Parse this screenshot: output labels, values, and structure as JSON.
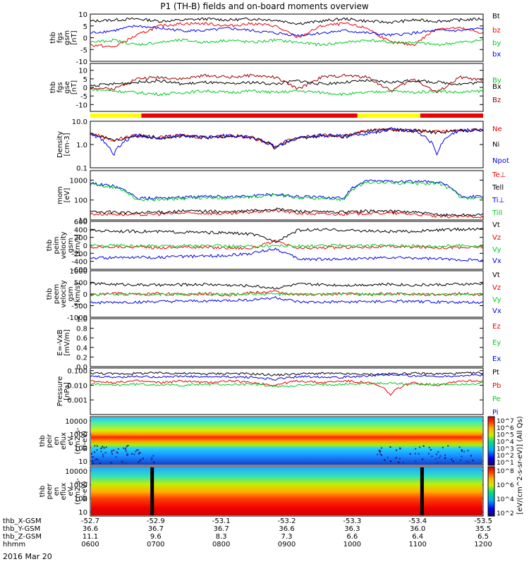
{
  "title": "P1 (TH-B) fields and on-board moments overview",
  "date_label": "2016 Mar 20",
  "colors": {
    "black": "#000000",
    "red": "#ee0000",
    "green": "#00cc22",
    "blue": "#0000ee",
    "darkred": "#990000",
    "yellow": "#ffff00",
    "barred": "#ee0000"
  },
  "chart_data": [
    {
      "type": "line",
      "panel": "fgs_gsm",
      "ylabel": [
        "thb",
        "fgs",
        "gsm",
        "[nT]"
      ],
      "ylim": [
        -10,
        10
      ],
      "yticks": [
        "10",
        "5",
        "0",
        "-5",
        "-10"
      ],
      "series": [
        {
          "name": "Bt",
          "color": "black",
          "values": [
            7,
            7.5,
            8,
            7,
            7.5,
            8,
            7.5,
            8,
            7.5,
            6,
            7,
            8,
            7,
            6.5,
            7.5,
            7,
            7.5,
            8
          ]
        },
        {
          "name": "bz",
          "color": "red",
          "values": [
            -3,
            -4,
            1,
            5,
            6,
            6,
            5,
            6,
            5,
            0,
            5,
            6,
            4,
            -2,
            -3,
            4,
            4,
            2
          ]
        },
        {
          "name": "by",
          "color": "green",
          "values": [
            -2,
            -1,
            -3,
            -2,
            -1,
            -2,
            -1,
            -2,
            -1,
            -2,
            -3,
            -2,
            -1,
            -2,
            -2,
            -3,
            -2,
            -1
          ]
        },
        {
          "name": "bx",
          "color": "blue",
          "values": [
            2,
            3,
            5,
            4,
            3,
            3,
            4,
            3,
            2,
            1,
            2,
            3,
            2,
            1,
            2,
            3,
            3,
            4
          ]
        }
      ]
    },
    {
      "type": "line",
      "panel": "fgs_gse",
      "ylabel": [
        "thb",
        "fgs",
        "gse",
        "[nT]"
      ],
      "ylim": [
        -14,
        14
      ],
      "yticks": [
        "10",
        "5",
        "0",
        "-5",
        "-10"
      ],
      "series": [
        {
          "name": "By",
          "color": "green",
          "values": [
            -1,
            -2,
            -3,
            -4,
            -3,
            -2,
            -3,
            -2,
            -3,
            -2,
            -3,
            -4,
            -3,
            -2,
            -3,
            -2,
            -3,
            -2
          ]
        },
        {
          "name": "Bx",
          "color": "black",
          "values": [
            1,
            2,
            3,
            4,
            2,
            3,
            2,
            3,
            2,
            4,
            2,
            3,
            4,
            3,
            4,
            3,
            2,
            3
          ]
        },
        {
          "name": "Bz",
          "color": "darkred",
          "values": [
            0,
            -1,
            5,
            6,
            5,
            7,
            6,
            7,
            6,
            -1,
            6,
            7,
            6,
            -2,
            5,
            -3,
            6,
            4
          ]
        }
      ]
    },
    {
      "type": "line",
      "panel": "density",
      "ylabel": [
        "Density",
        "[cm-3]"
      ],
      "ylim": [
        0.1,
        10
      ],
      "log": true,
      "yticks": [
        "10.0",
        "1.0",
        "0.1"
      ],
      "series": [
        {
          "name": "Ne",
          "color": "red",
          "values": [
            3,
            1.5,
            2.5,
            2,
            2.5,
            2,
            2.5,
            2,
            0.8,
            2,
            2.5,
            2.2,
            4,
            4.5,
            4,
            3.5,
            4,
            4.5
          ]
        },
        {
          "name": "Ni",
          "color": "black",
          "values": [
            3,
            1.4,
            2.4,
            2,
            2.3,
            2,
            2.4,
            2,
            0.7,
            1.9,
            2.4,
            2.1,
            4,
            4.4,
            3.9,
            3.4,
            3.9,
            4.4
          ]
        },
        {
          "name": "Npot",
          "color": "blue",
          "values": [
            3,
            0.3,
            2.5,
            2,
            2.5,
            2,
            2.5,
            2,
            0.8,
            2,
            2.5,
            2.4,
            3,
            4.5,
            4,
            0.3,
            4,
            4.5
          ]
        }
      ]
    },
    {
      "type": "line",
      "panel": "temperature",
      "ylabel": [
        "mom",
        "[eV]"
      ],
      "ylim": [
        10,
        3000
      ],
      "log": true,
      "yticks": [
        "1000",
        "100",
        "10"
      ],
      "series": [
        {
          "name": "Te⊥",
          "color": "red",
          "values": [
            20,
            20,
            18,
            20,
            22,
            22,
            20,
            25,
            30,
            22,
            20,
            20,
            22,
            22,
            20,
            15,
            15,
            15
          ]
        },
        {
          "name": "Tell",
          "color": "black",
          "values": [
            25,
            25,
            22,
            25,
            28,
            28,
            25,
            30,
            35,
            28,
            25,
            25,
            28,
            28,
            25,
            18,
            18,
            18
          ]
        },
        {
          "name": "Ti⊥",
          "color": "blue",
          "values": [
            700,
            500,
            120,
            130,
            140,
            150,
            150,
            160,
            200,
            150,
            140,
            130,
            900,
            900,
            850,
            800,
            150,
            150
          ]
        },
        {
          "name": "Till",
          "color": "green",
          "values": [
            600,
            450,
            100,
            110,
            120,
            130,
            130,
            140,
            180,
            130,
            120,
            110,
            750,
            750,
            700,
            700,
            120,
            120
          ]
        }
      ]
    },
    {
      "type": "line",
      "panel": "peim_velocity",
      "ylabel": [
        "thb",
        "peim",
        "velocity",
        "gsm",
        "[km/s]"
      ],
      "ylim": [
        -600,
        600
      ],
      "yticks": [
        "600",
        "400",
        "200",
        "0",
        "-200",
        "-400",
        "-600"
      ],
      "series": [
        {
          "name": "Vt",
          "color": "black",
          "values": [
            370,
            360,
            350,
            340,
            330,
            320,
            310,
            280,
            100,
            380,
            390,
            380,
            360,
            340,
            350,
            380,
            400,
            410
          ]
        },
        {
          "name": "Vz",
          "color": "red",
          "values": [
            -50,
            -30,
            -40,
            -60,
            -40,
            -50,
            -60,
            -70,
            100,
            -80,
            -60,
            -50,
            -40,
            -30,
            -40,
            -50,
            -60,
            -40
          ]
        },
        {
          "name": "Vy",
          "color": "green",
          "values": [
            -10,
            0,
            -20,
            -10,
            0,
            -10,
            -20,
            -30,
            0,
            -20,
            -10,
            0,
            -10,
            0,
            -10,
            -20,
            0,
            -10
          ]
        },
        {
          "name": "Vx",
          "color": "blue",
          "values": [
            -320,
            -310,
            -300,
            -300,
            -280,
            -270,
            -250,
            -200,
            -80,
            -340,
            -350,
            -340,
            -330,
            -310,
            -320,
            -340,
            -360,
            -370
          ]
        }
      ]
    },
    {
      "type": "line",
      "panel": "peem_velocity",
      "ylabel": [
        "thb",
        "peem",
        "velocity",
        "gsm",
        "[km/s]"
      ],
      "ylim": [
        -1000,
        1000
      ],
      "yticks": [
        "1000",
        "500",
        "0",
        "-500",
        "-1000"
      ],
      "series": [
        {
          "name": "Vt",
          "color": "black",
          "values": [
            450,
            420,
            400,
            380,
            400,
            420,
            380,
            350,
            250,
            420,
            400,
            380,
            400,
            420,
            380,
            400,
            420,
            430
          ]
        },
        {
          "name": "Vz",
          "color": "red",
          "values": [
            -50,
            30,
            -20,
            40,
            -30,
            20,
            -50,
            60,
            100,
            -40,
            -20,
            20,
            -30,
            30,
            -20,
            -40,
            20,
            -30
          ]
        },
        {
          "name": "Vy",
          "color": "green",
          "values": [
            -20,
            0,
            -10,
            -20,
            0,
            -10,
            -20,
            10,
            0,
            -20,
            -10,
            0,
            -20,
            0,
            -10,
            -20,
            0,
            -10
          ]
        },
        {
          "name": "Vx",
          "color": "blue",
          "values": [
            -380,
            -360,
            -350,
            -330,
            -320,
            -300,
            -280,
            -250,
            -150,
            -350,
            -360,
            -340,
            -330,
            -320,
            -330,
            -340,
            -360,
            -370
          ]
        }
      ]
    },
    {
      "type": "line",
      "panel": "efield",
      "ylabel": [
        "E=-VxB",
        "[mV/m]"
      ],
      "ylim": [
        0,
        1
      ],
      "yticks": [
        "1.0",
        "0.8",
        "0.6",
        "0.4",
        "0.2",
        "0.0"
      ],
      "series": [
        {
          "name": "Ez",
          "color": "red",
          "values": []
        },
        {
          "name": "Ey",
          "color": "green",
          "values": []
        },
        {
          "name": "Ex",
          "color": "blue",
          "values": []
        }
      ]
    },
    {
      "type": "line",
      "panel": "pressure",
      "ylabel": [
        "Pressure",
        "[nPa]"
      ],
      "ylim": [
        0.0001,
        0.15
      ],
      "log": true,
      "yticks": [
        "0.100",
        "0.010",
        "0.001"
      ],
      "series": [
        {
          "name": "Pt",
          "color": "black",
          "values": [
            0.07,
            0.06,
            0.065,
            0.07,
            0.065,
            0.06,
            0.065,
            0.06,
            0.05,
            0.06,
            0.065,
            0.06,
            0.055,
            0.06,
            0.065,
            0.06,
            0.065,
            0.07
          ]
        },
        {
          "name": "Pb",
          "color": "red",
          "values": [
            0.02,
            0.015,
            0.02,
            0.015,
            0.02,
            0.015,
            0.02,
            0.015,
            0.01,
            0.02,
            0.015,
            0.02,
            0.015,
            0.002,
            0.015,
            0.01,
            0.02,
            0.02
          ]
        },
        {
          "name": "Pe",
          "color": "green",
          "values": [
            0.012,
            0.01,
            0.012,
            0.011,
            0.01,
            0.012,
            0.011,
            0.012,
            0.008,
            0.01,
            0.011,
            0.012,
            0.013,
            0.014,
            0.012,
            0.011,
            0.012,
            0.013
          ]
        },
        {
          "name": "Pi",
          "color": "blue",
          "values": [
            0.04,
            0.035,
            0.04,
            0.038,
            0.04,
            0.036,
            0.038,
            0.035,
            0.025,
            0.04,
            0.038,
            0.036,
            0.045,
            0.05,
            0.045,
            0.04,
            0.045,
            0.05
          ]
        }
      ]
    },
    {
      "type": "heatmap",
      "panel": "peir_spectrogram",
      "ylabel": [
        "thb",
        "peir",
        "en",
        "eflux",
        "eV",
        "(cm2-s-",
        "sr-eV)"
      ],
      "ylim": [
        5,
        20000
      ],
      "log": true,
      "yticks": [
        "10000",
        "1000",
        "100",
        "10"
      ],
      "colorbar": {
        "label": "[eV/(cm^2-s-sr-eV)] (All Qs)",
        "ticks": [
          "10^7",
          "10^6",
          "10^5",
          "10^4",
          "10^3",
          "10^2",
          "10^1"
        ]
      }
    },
    {
      "type": "heatmap",
      "panel": "peer_spectrogram",
      "ylabel": [
        "thb",
        "peer",
        "en",
        "eflux",
        "eV",
        "(cm2-s-",
        "sr-eV)"
      ],
      "ylim": [
        5,
        20000
      ],
      "log": true,
      "yticks": [
        "10000",
        "1000",
        "100",
        "10"
      ],
      "colorbar": {
        "label": "[eV/(cm^2-s-sr-eV)] (All Qs)",
        "ticks": [
          "10^8",
          "10^6",
          "10^4",
          "10^2"
        ]
      }
    }
  ],
  "legends": [
    [
      "Bt",
      "bz",
      "by",
      "bx"
    ],
    [
      "By",
      "Bx",
      "Bz"
    ],
    [
      "Ne",
      "Ni",
      "Npot"
    ],
    [
      "Te⊥",
      "Tell",
      "Ti⊥",
      "Till"
    ],
    [
      "Vt",
      "Vz",
      "Vy",
      "Vx"
    ],
    [
      "Vt",
      "Vz",
      "Vy",
      "Vx"
    ],
    [
      "Ez",
      "Ey",
      "Ex"
    ],
    [
      "Pt",
      "Pb",
      "Pe",
      "Pi"
    ]
  ],
  "mode_bar": [
    {
      "from": 0.0,
      "to": 0.13,
      "color": "yellow"
    },
    {
      "from": 0.13,
      "to": 0.68,
      "color": "barred"
    },
    {
      "from": 0.68,
      "to": 0.84,
      "color": "yellow"
    },
    {
      "from": 0.84,
      "to": 1.0,
      "color": "barred"
    }
  ],
  "x_axis": {
    "row_labels": [
      "thb_X-GSM",
      "thb_Y-GSM",
      "thb_Z-GSM",
      "hhmm"
    ],
    "columns": [
      [
        "-52.7",
        "36.6",
        "11.1",
        "0600"
      ],
      [
        "-52.9",
        "36.7",
        "9.6",
        "0700"
      ],
      [
        "-53.1",
        "36.7",
        "8.3",
        "0800"
      ],
      [
        "-53.2",
        "36.6",
        "7.3",
        "0900"
      ],
      [
        "-53.3",
        "36.3",
        "6.6",
        "1000"
      ],
      [
        "-53.4",
        "36.0",
        "6.4",
        "1100"
      ],
      [
        "-53.5",
        "35.5",
        "6.5",
        "1200"
      ]
    ]
  }
}
